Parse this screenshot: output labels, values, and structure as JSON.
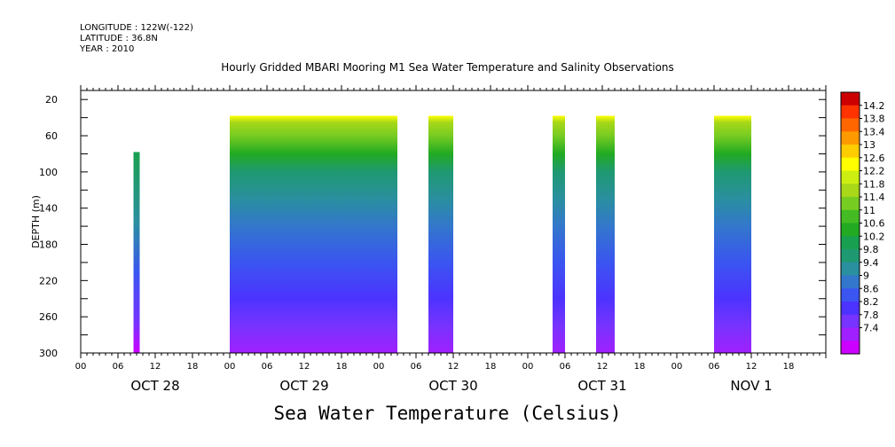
{
  "header": {
    "longitude": "LONGITUDE : 122W(-122)",
    "latitude": "LATITUDE : 36.8N",
    "year": "YEAR : 2010"
  },
  "chart_data": {
    "type": "heatmap",
    "title": "Hourly Gridded MBARI Mooring M1 Sea Water Temperature and Salinity Observations",
    "xlabel": "Sea Water Temperature (Celsius)",
    "ylabel": "DEPTH (m)",
    "ylim": [
      300,
      10
    ],
    "yticks": [
      20,
      60,
      100,
      140,
      180,
      220,
      260,
      300
    ],
    "xlim": [
      0,
      120
    ],
    "xtick_labels": [
      "00",
      "06",
      "12",
      "18",
      "00",
      "06",
      "12",
      "18",
      "00",
      "06",
      "12",
      "18",
      "00",
      "06",
      "12",
      "18",
      "00",
      "06",
      "12",
      "18"
    ],
    "day_labels": [
      "OCT 28",
      "OCT 29",
      "OCT 30",
      "OCT 31",
      "NOV  1"
    ],
    "colorbar_levels": [
      7.4,
      7.8,
      8.2,
      8.6,
      9,
      9.4,
      9.8,
      10.2,
      10.6,
      11,
      11.4,
      11.8,
      12.2,
      12.6,
      13,
      13.4,
      13.8,
      14.2
    ],
    "colorbar_labels": [
      "14.2",
      "13.8",
      "13.4",
      "13",
      "12.6",
      "12.2",
      "11.8",
      "11.4",
      "11",
      "10.6",
      "10.2",
      "9.8",
      "9.4",
      "9",
      "8.6",
      "8.2",
      "7.8",
      "7.4"
    ],
    "colors": [
      "#cc00ff",
      "#a020ff",
      "#7733ff",
      "#4d33ff",
      "#3a55f0",
      "#3377cc",
      "#2a8f9f",
      "#1f9972",
      "#18a050",
      "#22aa22",
      "#44bb22",
      "#77cc22",
      "#a8d818",
      "#ccee11",
      "#ffff00",
      "#ffcc00",
      "#ff9900",
      "#ff6600",
      "#ff3300",
      "#cc0000"
    ],
    "data_segments": [
      {
        "start_hour": 8.5,
        "end_hour": 9.5,
        "top_depth": 78,
        "bottom_depth": 300
      },
      {
        "start_hour": 24,
        "end_hour": 51,
        "top_depth": 38,
        "bottom_depth": 300
      },
      {
        "start_hour": 56,
        "end_hour": 60,
        "top_depth": 38,
        "bottom_depth": 300
      },
      {
        "start_hour": 76,
        "end_hour": 78,
        "top_depth": 38,
        "bottom_depth": 300
      },
      {
        "start_hour": 83,
        "end_hour": 86,
        "top_depth": 38,
        "bottom_depth": 300
      },
      {
        "start_hour": 102,
        "end_hour": 108,
        "top_depth": 38,
        "bottom_depth": 300
      }
    ],
    "temperature_profile": [
      {
        "depth": 38,
        "value": 12.6
      },
      {
        "depth": 45,
        "value": 12.1
      },
      {
        "depth": 60,
        "value": 11.5
      },
      {
        "depth": 80,
        "value": 10.8
      },
      {
        "depth": 100,
        "value": 10.1
      },
      {
        "depth": 130,
        "value": 9.6
      },
      {
        "depth": 160,
        "value": 9.1
      },
      {
        "depth": 200,
        "value": 8.7
      },
      {
        "depth": 240,
        "value": 8.3
      },
      {
        "depth": 270,
        "value": 7.9
      },
      {
        "depth": 300,
        "value": 7.5
      }
    ]
  }
}
